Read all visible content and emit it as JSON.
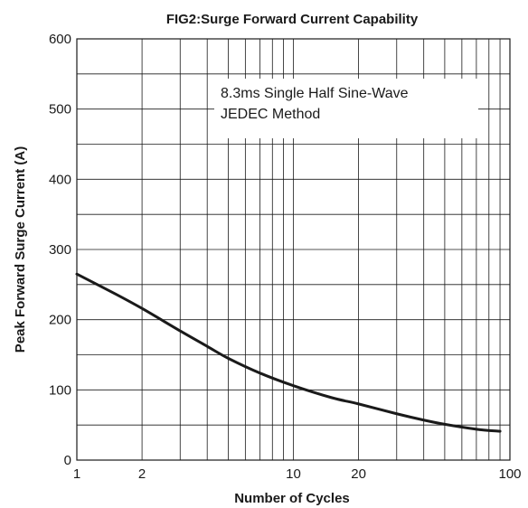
{
  "chart_data": {
    "type": "line",
    "title": "FIG2:Surge Forward Current Capability",
    "xlabel": "Number of Cycles",
    "ylabel": "Peak  Forward Surge Current (A)",
    "x_scale": "log",
    "xlim": [
      1,
      100
    ],
    "ylim": [
      0,
      600
    ],
    "grid": true,
    "x_ticks": [
      {
        "value": 1,
        "label": "1"
      },
      {
        "value": 2,
        "label": "2"
      },
      {
        "value": 10,
        "label": "10"
      },
      {
        "value": 20,
        "label": "20"
      },
      {
        "value": 100,
        "label": "100"
      }
    ],
    "y_ticks": [
      {
        "value": 0,
        "label": "0"
      },
      {
        "value": 100,
        "label": "100"
      },
      {
        "value": 200,
        "label": "200"
      },
      {
        "value": 300,
        "label": "300"
      },
      {
        "value": 400,
        "label": "400"
      },
      {
        "value": 500,
        "label": "500"
      },
      {
        "value": 600,
        "label": "600"
      }
    ],
    "annotation": [
      "8.3ms Single Half Sine-Wave",
      "JEDEC Method"
    ],
    "series": [
      {
        "x": [
          1,
          1.5,
          2,
          3,
          4,
          5,
          7,
          10,
          15,
          20,
          30,
          40,
          50,
          70,
          90
        ],
        "y": [
          265,
          237,
          216,
          184,
          162,
          145,
          124,
          106,
          89,
          80,
          66,
          57,
          51,
          44,
          41
        ]
      }
    ],
    "colors": {
      "line": "#1a1a1a",
      "grid": "#1a1a1a"
    }
  }
}
